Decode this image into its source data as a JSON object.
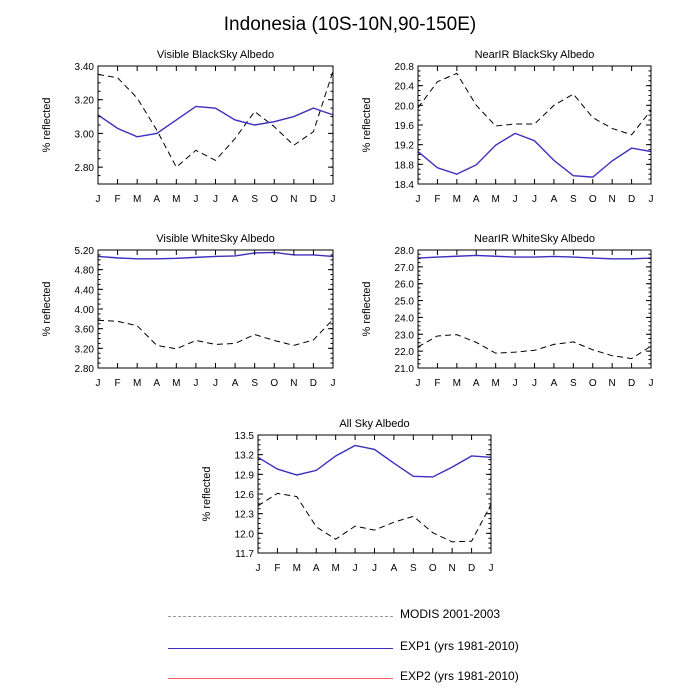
{
  "page": {
    "title": "Indonesia (10S-10N,90-150E)"
  },
  "legend": {
    "items": [
      {
        "label": "MODIS 2001-2003",
        "color": "#9a9a9a",
        "style": "dashed"
      },
      {
        "label": "EXP1 (yrs 1981-2010)",
        "color": "#3a2fbf",
        "style": "solid"
      },
      {
        "label": "EXP2 (yrs 1981-2010)",
        "color": "#ff6070",
        "style": "solid"
      }
    ]
  },
  "chart_data": [
    {
      "type": "line",
      "title": "Visible BlackSky Albedo",
      "ylabel": "% reflected",
      "x": [
        "J",
        "F",
        "M",
        "A",
        "M",
        "J",
        "J",
        "A",
        "S",
        "O",
        "N",
        "D",
        "J"
      ],
      "ylim": [
        2.7,
        3.4
      ],
      "yticks": [
        2.8,
        3.0,
        3.2,
        3.4
      ],
      "ytick_labels": [
        "2.80",
        "3.00",
        "3.20",
        "3.40"
      ],
      "series": [
        {
          "name": "MODIS 2001-2003",
          "style": "dashed",
          "color": "#000000",
          "values": [
            3.35,
            3.33,
            3.21,
            3.02,
            2.8,
            2.9,
            2.84,
            2.97,
            3.13,
            3.04,
            2.93,
            3.01,
            3.37
          ]
        },
        {
          "name": "EXP1 (yrs 1981-2010)",
          "style": "solid",
          "color": "#3a2fbf",
          "values": [
            3.11,
            3.03,
            2.98,
            3.0,
            3.08,
            3.16,
            3.15,
            3.08,
            3.05,
            3.07,
            3.1,
            3.15,
            3.11
          ]
        }
      ]
    },
    {
      "type": "line",
      "title": "NearIR BlackSky Albedo",
      "ylabel": "% reflected",
      "x": [
        "J",
        "F",
        "M",
        "A",
        "M",
        "J",
        "J",
        "A",
        "S",
        "O",
        "N",
        "D",
        "J"
      ],
      "ylim": [
        18.4,
        20.8
      ],
      "yticks": [
        18.4,
        18.8,
        19.2,
        19.6,
        20.0,
        20.4,
        20.8
      ],
      "ytick_labels": [
        "18.4",
        "18.8",
        "19.2",
        "19.6",
        "20.0",
        "20.4",
        "20.8"
      ],
      "series": [
        {
          "name": "MODIS 2001-2003",
          "style": "dashed",
          "color": "#000000",
          "values": [
            19.95,
            20.48,
            20.65,
            20.0,
            19.58,
            19.62,
            19.62,
            20.0,
            20.23,
            19.75,
            19.53,
            19.4,
            19.9
          ]
        },
        {
          "name": "EXP1 (yrs 1981-2010)",
          "style": "solid",
          "color": "#3a2fbf",
          "values": [
            19.06,
            18.73,
            18.6,
            18.79,
            19.19,
            19.43,
            19.28,
            18.88,
            18.57,
            18.54,
            18.87,
            19.13,
            19.06
          ]
        }
      ]
    },
    {
      "type": "line",
      "title": "Visible WhiteSky Albedo",
      "ylabel": "% reflected",
      "x": [
        "J",
        "F",
        "M",
        "A",
        "M",
        "J",
        "J",
        "A",
        "S",
        "O",
        "N",
        "D",
        "J"
      ],
      "ylim": [
        2.8,
        5.2
      ],
      "yticks": [
        2.8,
        3.2,
        3.6,
        4.0,
        4.4,
        4.8,
        5.2
      ],
      "ytick_labels": [
        "2.80",
        "3.20",
        "3.60",
        "4.00",
        "4.40",
        "4.80",
        "5.20"
      ],
      "series": [
        {
          "name": "MODIS 2001-2003",
          "style": "dashed",
          "color": "#000000",
          "values": [
            3.77,
            3.75,
            3.66,
            3.26,
            3.19,
            3.36,
            3.28,
            3.3,
            3.48,
            3.36,
            3.26,
            3.37,
            3.79
          ]
        },
        {
          "name": "EXP1 (yrs 1981-2010)",
          "style": "solid",
          "color": "#3a2fbf",
          "values": [
            5.07,
            5.04,
            5.02,
            5.02,
            5.03,
            5.05,
            5.07,
            5.08,
            5.14,
            5.15,
            5.1,
            5.1,
            5.07
          ]
        }
      ]
    },
    {
      "type": "line",
      "title": "NearIR WhiteSky Albedo",
      "ylabel": "% reflected",
      "x": [
        "J",
        "F",
        "M",
        "A",
        "M",
        "J",
        "J",
        "A",
        "S",
        "O",
        "N",
        "D",
        "J"
      ],
      "ylim": [
        21.0,
        28.0
      ],
      "yticks": [
        21,
        22,
        23,
        24,
        25,
        26,
        27,
        28
      ],
      "ytick_labels": [
        "21.0",
        "22.0",
        "23.0",
        "24.0",
        "25.0",
        "26.0",
        "27.0",
        "28.0"
      ],
      "series": [
        {
          "name": "MODIS 2001-2003",
          "style": "dashed",
          "color": "#000000",
          "values": [
            22.25,
            22.9,
            22.98,
            22.52,
            21.88,
            21.94,
            22.05,
            22.4,
            22.55,
            22.08,
            21.73,
            21.56,
            22.3
          ]
        },
        {
          "name": "EXP1 (yrs 1981-2010)",
          "style": "solid",
          "color": "#3a2fbf",
          "values": [
            27.52,
            27.58,
            27.63,
            27.68,
            27.63,
            27.58,
            27.58,
            27.62,
            27.58,
            27.52,
            27.48,
            27.48,
            27.52
          ]
        }
      ]
    },
    {
      "type": "line",
      "title": "All Sky Albedo",
      "ylabel": "% reflected",
      "x": [
        "J",
        "F",
        "M",
        "A",
        "M",
        "J",
        "J",
        "A",
        "S",
        "O",
        "N",
        "D",
        "J"
      ],
      "ylim": [
        11.7,
        13.5
      ],
      "yticks": [
        11.7,
        12.0,
        12.3,
        12.6,
        12.9,
        13.2,
        13.5
      ],
      "ytick_labels": [
        "11.7",
        "12.0",
        "12.3",
        "12.6",
        "12.9",
        "13.2",
        "13.5"
      ],
      "series": [
        {
          "name": "MODIS 2001-2003",
          "style": "dashed",
          "color": "#000000",
          "values": [
            12.42,
            12.61,
            12.56,
            12.1,
            11.91,
            12.11,
            12.05,
            12.17,
            12.26,
            12.01,
            11.87,
            11.88,
            12.44
          ]
        },
        {
          "name": "EXP1 (yrs 1981-2010)",
          "style": "solid",
          "color": "#3a2fbf",
          "values": [
            13.16,
            12.98,
            12.89,
            12.96,
            13.18,
            13.34,
            13.28,
            13.07,
            12.87,
            12.86,
            13.01,
            13.18,
            13.16
          ]
        }
      ]
    }
  ]
}
